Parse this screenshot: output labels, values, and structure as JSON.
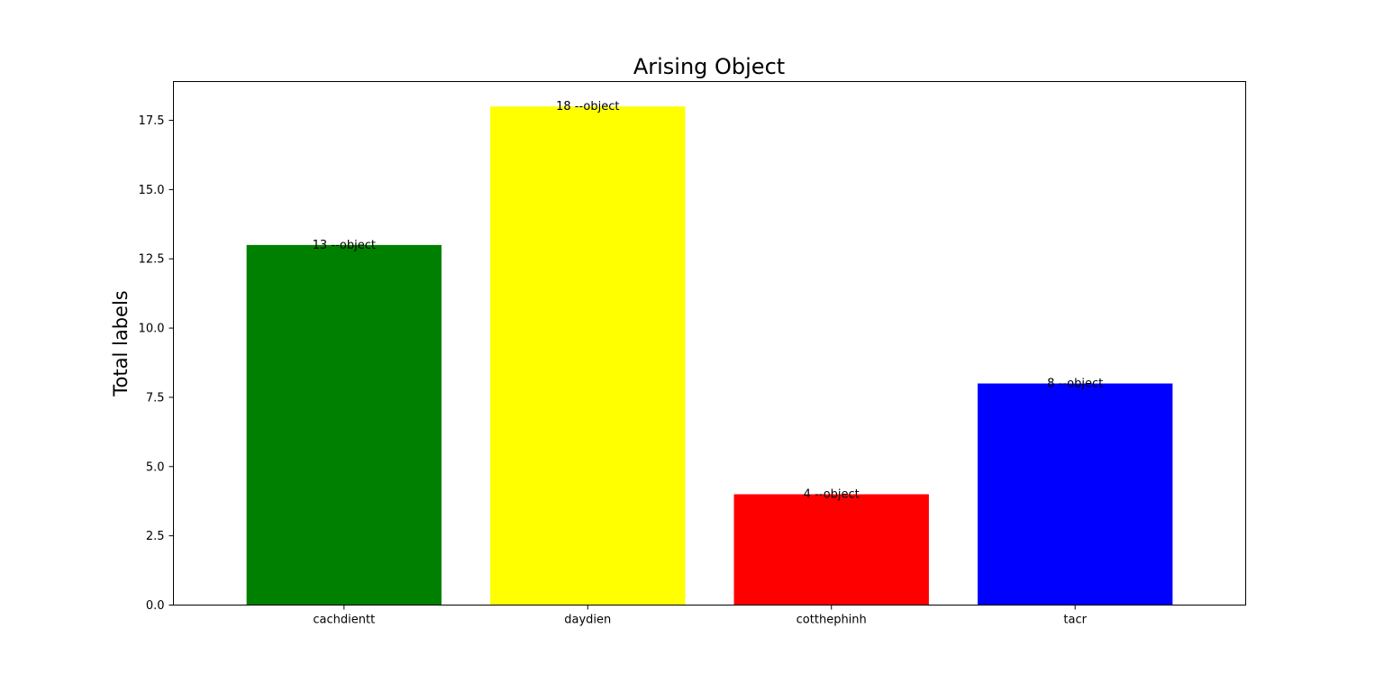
{
  "chart_data": {
    "type": "bar",
    "title": "Arising Object",
    "xlabel": "",
    "ylabel": "Total labels",
    "categories": [
      "cachdientt",
      "daydien",
      "cotthephinh",
      "tacr"
    ],
    "values": [
      13,
      18,
      4,
      8
    ],
    "bar_labels": [
      "13 --object",
      "18 --object",
      "4 --object",
      "8 --object"
    ],
    "colors": [
      "#008000",
      "#ffff00",
      "#ff0000",
      "#0000ff"
    ],
    "yticks": [
      "0.0",
      "2.5",
      "5.0",
      "7.5",
      "10.0",
      "12.5",
      "15.0",
      "17.5"
    ],
    "ylim": [
      0,
      18.9
    ],
    "grid": false,
    "legend": false
  }
}
